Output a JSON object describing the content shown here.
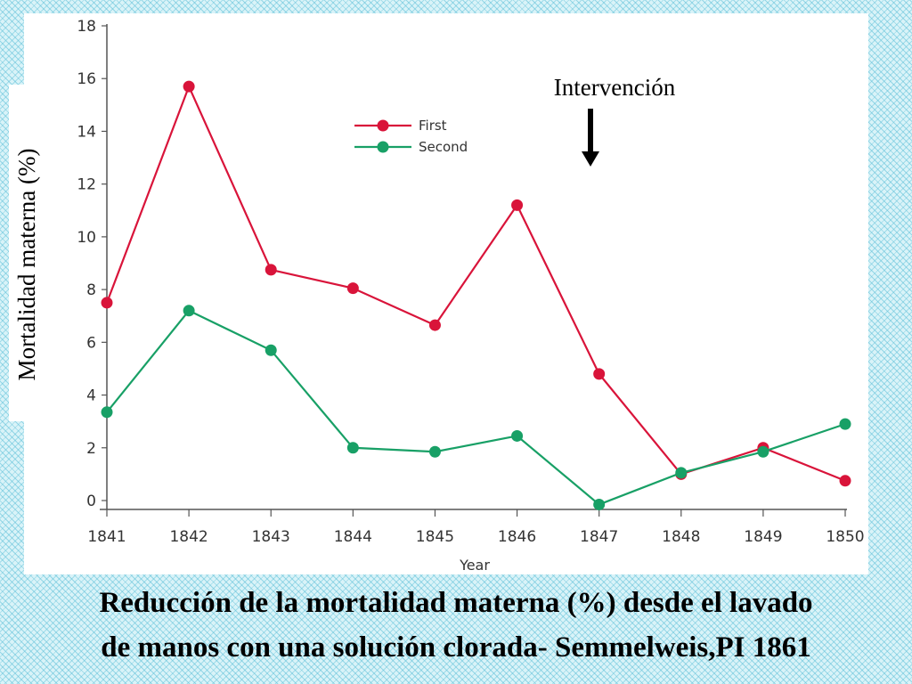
{
  "chart_data": {
    "type": "line",
    "x": [
      1841,
      1842,
      1843,
      1844,
      1845,
      1846,
      1847,
      1848,
      1849,
      1850
    ],
    "series": [
      {
        "name": "First",
        "color": "#d9143a",
        "values": [
          7.5,
          15.7,
          8.75,
          8.05,
          6.65,
          11.2,
          4.8,
          1.0,
          2.0,
          0.75
        ]
      },
      {
        "name": "Second",
        "color": "#18a066",
        "values": [
          3.35,
          7.2,
          5.7,
          2.0,
          1.85,
          2.45,
          -0.15,
          1.05,
          1.85,
          2.9
        ]
      }
    ],
    "xlabel": "Year",
    "ylabel": "Mortalidad materna (%)",
    "ylim": [
      0,
      18
    ],
    "xlim": [
      1841,
      1850
    ],
    "yticks": [
      0,
      2,
      4,
      6,
      8,
      10,
      12,
      14,
      16,
      18
    ],
    "xticks": [
      1841,
      1842,
      1843,
      1844,
      1845,
      1846,
      1847,
      1848,
      1849,
      1850
    ],
    "grid": false,
    "legend": "top-center",
    "annotation": {
      "text": "Intervención",
      "x": 1847,
      "arrow": "down"
    }
  },
  "caption": {
    "line1": "Reducción de la mortalidad materna (%) desde el lavado",
    "line2": "de manos con una solución clorada- Semmelweis,PI 1861"
  }
}
